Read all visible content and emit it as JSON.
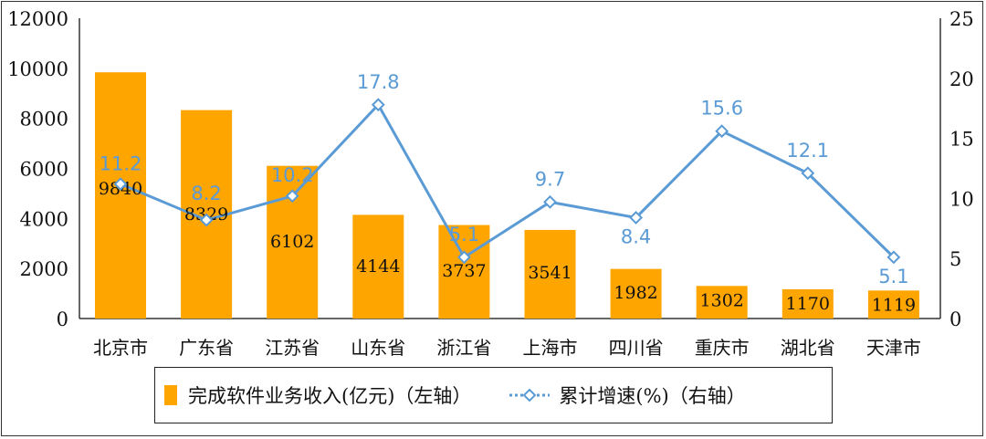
{
  "chart_data": {
    "type": "bar+line",
    "categories": [
      "北京市",
      "广东省",
      "江苏省",
      "山东省",
      "浙江省",
      "上海市",
      "四川省",
      "重庆市",
      "湖北省",
      "天津市"
    ],
    "series": [
      {
        "name": "完成软件业务收入(亿元)（左轴）",
        "type": "bar",
        "axis": "left",
        "color": "#FFA500",
        "values": [
          9840,
          8329,
          6102,
          4144,
          3737,
          3541,
          1982,
          1302,
          1170,
          1119
        ]
      },
      {
        "name": "累计增速(%)（右轴）",
        "type": "line",
        "axis": "right",
        "color": "#5B9BD5",
        "values": [
          11.2,
          8.2,
          10.2,
          17.8,
          5.1,
          9.7,
          8.4,
          15.6,
          12.1,
          5.1
        ]
      }
    ],
    "left_axis": {
      "ylim": [
        0,
        12000
      ],
      "ticks": [
        "0",
        "2000",
        "4000",
        "6000",
        "8000",
        "10000",
        "12000"
      ]
    },
    "right_axis": {
      "ylim": [
        0,
        25
      ],
      "ticks": [
        "0",
        "5",
        "10",
        "15",
        "20",
        "25"
      ]
    },
    "grid": false,
    "legend_position": "bottom"
  }
}
